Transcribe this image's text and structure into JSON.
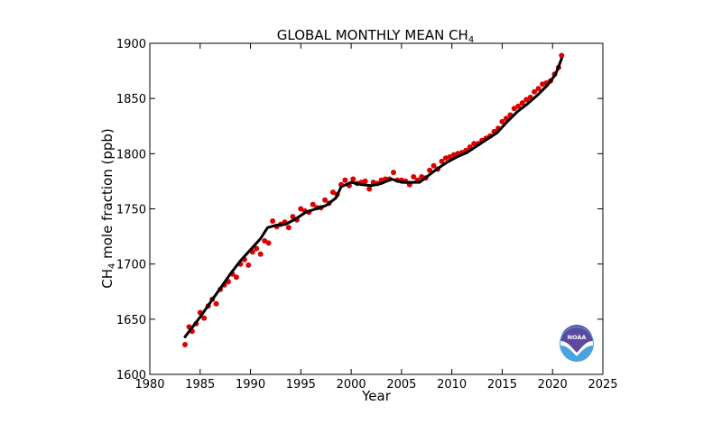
{
  "chart_data": {
    "type": "line",
    "title_main": "GLOBAL MONTHLY MEAN CH",
    "title_sub": "4",
    "xlabel": "Year",
    "ylabel_pre": "CH",
    "ylabel_sub": "4",
    "ylabel_post": " mole fraction (ppb)",
    "xlim": [
      1980,
      2025
    ],
    "ylim": [
      1600,
      1900
    ],
    "xticks": [
      "1980",
      "1985",
      "1990",
      "1995",
      "2000",
      "2005",
      "2010",
      "2015",
      "2020",
      "2025"
    ],
    "yticks": [
      "1600",
      "1650",
      "1700",
      "1750",
      "1800",
      "1850",
      "1900"
    ],
    "grid": false,
    "series": [
      {
        "kind": "monthly_mean",
        "style": "red-dots",
        "color": "#dd0000",
        "x": [
          1983.5,
          1983.9,
          1984.2,
          1984.6,
          1985.0,
          1985.4,
          1985.8,
          1986.2,
          1986.6,
          1987.0,
          1987.4,
          1987.8,
          1988.2,
          1988.6,
          1989.0,
          1989.4,
          1989.8,
          1990.2,
          1990.6,
          1991.0,
          1991.4,
          1991.8,
          1992.2,
          1992.6,
          1993.0,
          1993.4,
          1993.8,
          1994.2,
          1994.6,
          1995.0,
          1995.4,
          1995.8,
          1996.2,
          1996.6,
          1997.0,
          1997.4,
          1997.8,
          1998.2,
          1998.6,
          1999.0,
          1999.4,
          1999.8,
          2000.2,
          2000.6,
          2001.0,
          2001.4,
          2001.8,
          2002.2,
          2002.6,
          2003.0,
          2003.4,
          2003.8,
          2004.2,
          2004.6,
          2005.0,
          2005.4,
          2005.8,
          2006.2,
          2006.6,
          2007.0,
          2007.4,
          2007.8,
          2008.2,
          2008.6,
          2009.0,
          2009.4,
          2009.8,
          2010.2,
          2010.6,
          2011.0,
          2011.4,
          2011.8,
          2012.2,
          2012.6,
          2013.0,
          2013.4,
          2013.8,
          2014.2,
          2014.6,
          2015.0,
          2015.4,
          2015.8,
          2016.2,
          2016.6,
          2017.0,
          2017.4,
          2017.8,
          2018.2,
          2018.6,
          2019.0,
          2019.4,
          2019.8,
          2020.2,
          2020.6,
          2020.9
        ],
        "y": [
          1627,
          1643,
          1639,
          1646,
          1656,
          1651,
          1662,
          1668,
          1664,
          1677,
          1681,
          1684,
          1691,
          1688,
          1700,
          1704,
          1699,
          1711,
          1714,
          1709,
          1721,
          1719,
          1739,
          1734,
          1736,
          1738,
          1733,
          1743,
          1740,
          1750,
          1748,
          1747,
          1754,
          1751,
          1751,
          1758,
          1755,
          1765,
          1763,
          1772,
          1776,
          1771,
          1777,
          1773,
          1774,
          1775,
          1768,
          1774,
          1773,
          1776,
          1777,
          1777,
          1783,
          1776,
          1776,
          1775,
          1772,
          1779,
          1776,
          1779,
          1778,
          1785,
          1789,
          1786,
          1793,
          1796,
          1797,
          1799,
          1800,
          1801,
          1803,
          1806,
          1809,
          1809,
          1812,
          1814,
          1816,
          1820,
          1823,
          1829,
          1832,
          1835,
          1841,
          1843,
          1846,
          1849,
          1851,
          1856,
          1859,
          1863,
          1864,
          1866,
          1872,
          1878,
          1889
        ]
      },
      {
        "kind": "trend",
        "style": "black-line",
        "color": "#000000",
        "x": [
          1983.5,
          1984.0,
          1985.0,
          1986.0,
          1987.0,
          1988.0,
          1989.0,
          1990.0,
          1991.0,
          1991.7,
          1992.5,
          1993.5,
          1994.5,
          1995.5,
          1996.5,
          1997.5,
          1998.5,
          1999.0,
          2000.0,
          2001.0,
          2002.0,
          2003.0,
          2004.0,
          2005.0,
          2006.0,
          2006.8,
          2007.5,
          2008.5,
          2009.5,
          2010.5,
          2011.5,
          2012.5,
          2013.5,
          2014.5,
          2015.5,
          2016.5,
          2017.5,
          2018.5,
          2019.5,
          2020.3,
          2020.9
        ],
        "y": [
          1634,
          1640,
          1652,
          1665,
          1678,
          1691,
          1703,
          1713,
          1723,
          1733,
          1735,
          1736,
          1741,
          1747,
          1750,
          1753,
          1760,
          1770,
          1774,
          1772,
          1771,
          1773,
          1777,
          1774,
          1774,
          1774,
          1779,
          1786,
          1792,
          1797,
          1801,
          1807,
          1813,
          1819,
          1829,
          1838,
          1845,
          1853,
          1862,
          1872,
          1886
        ]
      }
    ]
  },
  "logo": {
    "text": "NOAA",
    "colors": {
      "top": "#5b4a9e",
      "bottom": "#4aa3df",
      "ring": "#ffffff"
    }
  }
}
